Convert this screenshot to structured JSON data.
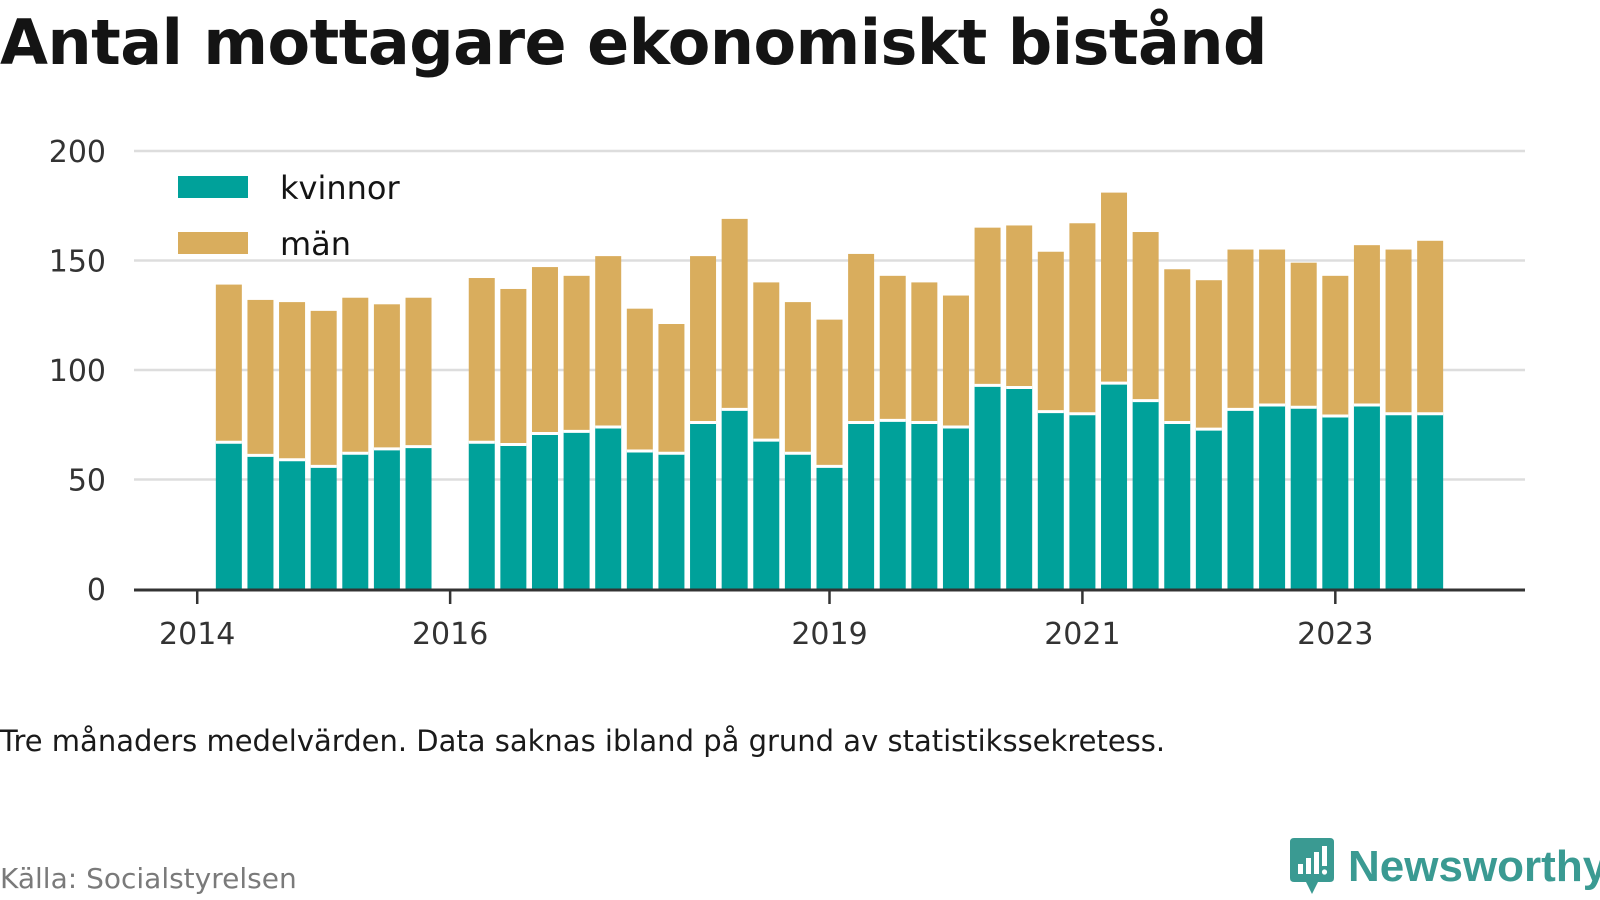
{
  "title": "Antal mottagare ekonomiskt bistånd",
  "note": "Tre månaders medelvärden. Data saknas ibland på grund av statistikssekretess.",
  "source": "Källa: Socialstyrelsen",
  "brand": {
    "name": "Newsworthy",
    "icon": "bar-chart-speech-bubble-icon",
    "color": "#3a9a92"
  },
  "chart_data": {
    "type": "bar",
    "stacked": true,
    "ylim": [
      0,
      200
    ],
    "yticks": [
      0,
      50,
      100,
      150,
      200
    ],
    "xticks": [
      {
        "label": "2014",
        "x": "2014-01"
      },
      {
        "label": "2016",
        "x": "2016-01"
      },
      {
        "label": "2019",
        "x": "2019-01"
      },
      {
        "label": "2021",
        "x": "2021-01"
      },
      {
        "label": "2023",
        "x": "2023-01"
      }
    ],
    "x_range": [
      "2013-07",
      "2024-07"
    ],
    "grid": true,
    "legend_position": "top-left",
    "series": [
      {
        "name": "kvinnor",
        "color": "#00a19a"
      },
      {
        "name": "män",
        "color": "#d9ad5d"
      }
    ],
    "periods": [
      {
        "x": "2014-04",
        "kvinnor": 67,
        "män": 72
      },
      {
        "x": "2014-07",
        "kvinnor": 61,
        "män": 71
      },
      {
        "x": "2014-10",
        "kvinnor": 59,
        "män": 72
      },
      {
        "x": "2015-01",
        "kvinnor": 56,
        "män": 71
      },
      {
        "x": "2015-04",
        "kvinnor": 62,
        "män": 71
      },
      {
        "x": "2015-07",
        "kvinnor": 64,
        "män": 66
      },
      {
        "x": "2015-10",
        "kvinnor": 65,
        "män": 68
      },
      {
        "x": "2016-04",
        "kvinnor": 67,
        "män": 75
      },
      {
        "x": "2016-07",
        "kvinnor": 66,
        "män": 71
      },
      {
        "x": "2016-10",
        "kvinnor": 71,
        "män": 76
      },
      {
        "x": "2017-01",
        "kvinnor": 72,
        "män": 71
      },
      {
        "x": "2017-04",
        "kvinnor": 74,
        "män": 78
      },
      {
        "x": "2017-07",
        "kvinnor": 63,
        "män": 65
      },
      {
        "x": "2017-10",
        "kvinnor": 62,
        "män": 59
      },
      {
        "x": "2018-01",
        "kvinnor": 76,
        "män": 76
      },
      {
        "x": "2018-04",
        "kvinnor": 82,
        "män": 87
      },
      {
        "x": "2018-07",
        "kvinnor": 68,
        "män": 72
      },
      {
        "x": "2018-10",
        "kvinnor": 62,
        "män": 69
      },
      {
        "x": "2019-01",
        "kvinnor": 56,
        "män": 67
      },
      {
        "x": "2019-04",
        "kvinnor": 76,
        "män": 77
      },
      {
        "x": "2019-07",
        "kvinnor": 77,
        "män": 66
      },
      {
        "x": "2019-10",
        "kvinnor": 76,
        "män": 64
      },
      {
        "x": "2020-01",
        "kvinnor": 74,
        "män": 60
      },
      {
        "x": "2020-04",
        "kvinnor": 93,
        "män": 72
      },
      {
        "x": "2020-07",
        "kvinnor": 92,
        "män": 74
      },
      {
        "x": "2020-10",
        "kvinnor": 81,
        "män": 73
      },
      {
        "x": "2021-01",
        "kvinnor": 80,
        "män": 87
      },
      {
        "x": "2021-04",
        "kvinnor": 94,
        "män": 87
      },
      {
        "x": "2021-07",
        "kvinnor": 86,
        "män": 77
      },
      {
        "x": "2021-10",
        "kvinnor": 76,
        "män": 70
      },
      {
        "x": "2022-01",
        "kvinnor": 73,
        "män": 68
      },
      {
        "x": "2022-04",
        "kvinnor": 82,
        "män": 73
      },
      {
        "x": "2022-07",
        "kvinnor": 84,
        "män": 71
      },
      {
        "x": "2022-10",
        "kvinnor": 83,
        "män": 66
      },
      {
        "x": "2023-01",
        "kvinnor": 79,
        "män": 64
      },
      {
        "x": "2023-04",
        "kvinnor": 84,
        "män": 73
      },
      {
        "x": "2023-07",
        "kvinnor": 80,
        "män": 75
      },
      {
        "x": "2023-10",
        "kvinnor": 80,
        "män": 79
      }
    ]
  }
}
